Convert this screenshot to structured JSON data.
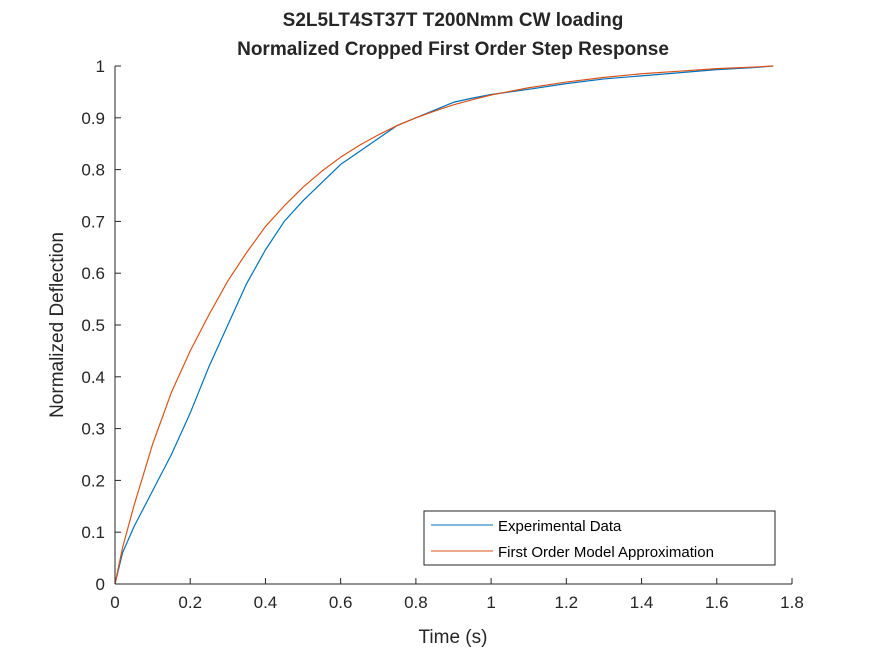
{
  "chart_data": {
    "type": "line",
    "title": [
      "S2L5LT4ST37T T200Nmm CW loading",
      "Normalized Cropped First Order Step Response"
    ],
    "xlabel": "Time (s)",
    "ylabel": "Normalized Deflection",
    "xlim": [
      0,
      1.8
    ],
    "ylim": [
      0,
      1
    ],
    "xticks": [
      0,
      0.2,
      0.4,
      0.6,
      0.8,
      1,
      1.2,
      1.4,
      1.6,
      1.8
    ],
    "xtick_labels": [
      "0",
      "0.2",
      "0.4",
      "0.6",
      "0.8",
      "1",
      "1.2",
      "1.4",
      "1.6",
      "1.8"
    ],
    "yticks": [
      0,
      0.1,
      0.2,
      0.3,
      0.4,
      0.5,
      0.6,
      0.7,
      0.8,
      0.9,
      1
    ],
    "ytick_labels": [
      "0",
      "0.1",
      "0.2",
      "0.3",
      "0.4",
      "0.5",
      "0.6",
      "0.7",
      "0.8",
      "0.9",
      "1"
    ],
    "grid": false,
    "legend_position": "bottom-right",
    "series": [
      {
        "name": "Experimental Data",
        "color": "#0072BD",
        "x": [
          0,
          0.02,
          0.05,
          0.1,
          0.15,
          0.2,
          0.25,
          0.3,
          0.35,
          0.4,
          0.45,
          0.5,
          0.55,
          0.6,
          0.65,
          0.7,
          0.75,
          0.8,
          0.85,
          0.9,
          0.95,
          1.0,
          1.1,
          1.2,
          1.3,
          1.4,
          1.5,
          1.6,
          1.7,
          1.75
        ],
        "y": [
          0,
          0.06,
          0.11,
          0.18,
          0.25,
          0.33,
          0.42,
          0.5,
          0.58,
          0.645,
          0.7,
          0.74,
          0.775,
          0.81,
          0.835,
          0.86,
          0.885,
          0.9,
          0.915,
          0.93,
          0.938,
          0.945,
          0.955,
          0.966,
          0.975,
          0.981,
          0.987,
          0.993,
          0.997,
          1.0
        ]
      },
      {
        "name": "First Order Model Approximation",
        "color": "#D95319",
        "x": [
          0,
          0.02,
          0.05,
          0.1,
          0.15,
          0.2,
          0.25,
          0.3,
          0.35,
          0.4,
          0.45,
          0.5,
          0.55,
          0.6,
          0.65,
          0.7,
          0.75,
          0.8,
          0.85,
          0.9,
          0.95,
          1.0,
          1.1,
          1.2,
          1.3,
          1.4,
          1.5,
          1.6,
          1.7,
          1.75
        ],
        "y": [
          0,
          0.07,
          0.15,
          0.27,
          0.37,
          0.45,
          0.52,
          0.585,
          0.64,
          0.69,
          0.73,
          0.766,
          0.797,
          0.824,
          0.847,
          0.867,
          0.885,
          0.9,
          0.913,
          0.925,
          0.935,
          0.944,
          0.958,
          0.969,
          0.978,
          0.985,
          0.99,
          0.995,
          0.998,
          1.0
        ]
      }
    ]
  }
}
